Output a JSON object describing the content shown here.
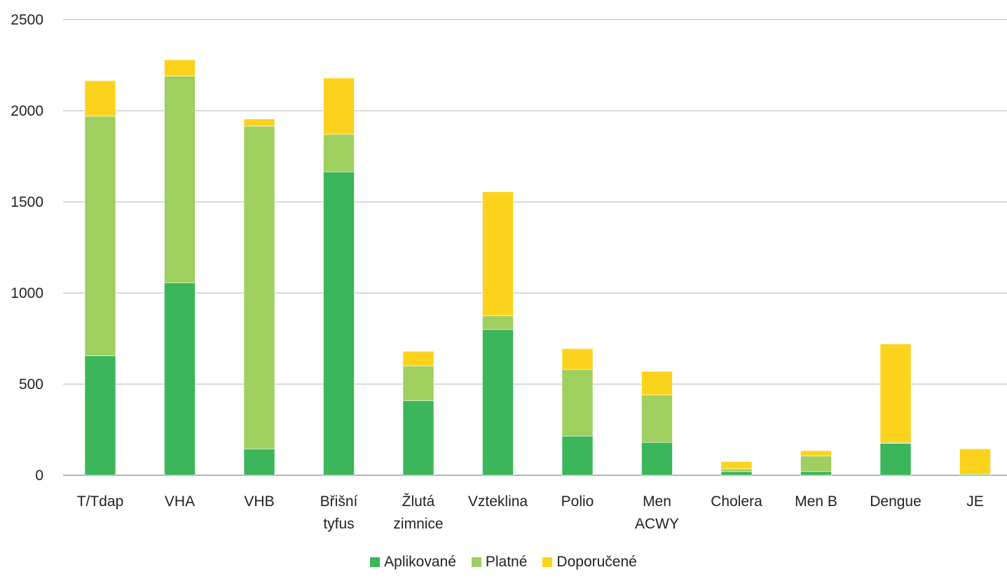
{
  "chart_data": {
    "type": "bar",
    "stacked": true,
    "categories": [
      [
        "T/Tdap"
      ],
      [
        "VHA"
      ],
      [
        "VHB"
      ],
      [
        "Břišní",
        "tyfus"
      ],
      [
        "Žlutá",
        "zimnice"
      ],
      [
        "Vzteklina"
      ],
      [
        "Polio"
      ],
      [
        "Men",
        "ACWY"
      ],
      [
        "Cholera"
      ],
      [
        "Men B"
      ],
      [
        "Dengue"
      ],
      [
        "JE"
      ]
    ],
    "series": [
      {
        "name": "Aplikované",
        "color": "#3cb65a",
        "values": [
          655,
          1055,
          145,
          1665,
          410,
          800,
          215,
          180,
          20,
          20,
          175,
          5
        ]
      },
      {
        "name": "Platné",
        "color": "#9fcf5f",
        "values": [
          1315,
          1135,
          1770,
          205,
          190,
          75,
          365,
          260,
          15,
          85,
          5,
          0
        ]
      },
      {
        "name": "Doporučené",
        "color": "#fcd31c",
        "values": [
          195,
          90,
          40,
          310,
          80,
          680,
          115,
          130,
          40,
          30,
          540,
          140
        ]
      }
    ],
    "ylim": [
      0,
      2500
    ],
    "yticks": [
      "0",
      "500",
      "1000",
      "1500",
      "2000",
      "2500"
    ],
    "grid": true,
    "legend_position": "bottom"
  }
}
